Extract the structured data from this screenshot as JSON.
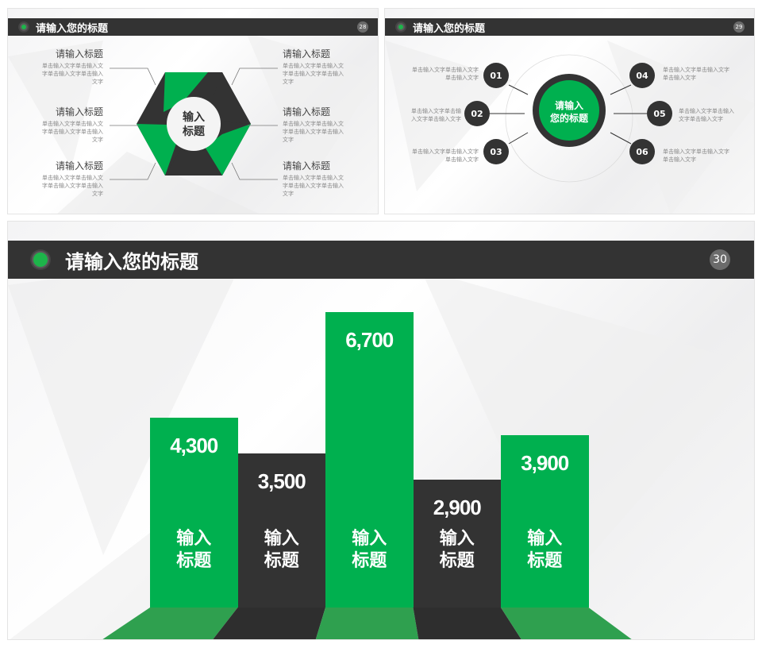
{
  "slide1": {
    "title": "请输入您的标题",
    "page": "28",
    "center_label": "输入\n标题",
    "items_left": [
      {
        "title": "请输入标题",
        "body": "单击输入文字单击输入文字单击输入文字单击输入文字"
      },
      {
        "title": "请输入标题",
        "body": "单击输入文字单击输入文字单击输入文字单击输入文字"
      },
      {
        "title": "请输入标题",
        "body": "单击输入文字单击输入文字单击输入文字单击输入文字"
      }
    ],
    "items_right": [
      {
        "title": "请输入标题",
        "body": "单击输入文字单击输入文字单击输入文字单击输入文字"
      },
      {
        "title": "请输入标题",
        "body": "单击输入文字单击输入文字单击输入文字单击输入文字"
      },
      {
        "title": "请输入标题",
        "body": "单击输入文字单击输入文字单击输入文字单击输入文字"
      }
    ]
  },
  "slide2": {
    "title": "请输入您的标题",
    "page": "29",
    "center_label": "请输入\n您的标题",
    "nodes": [
      {
        "num": "01",
        "text": "单击输入文字单击输入文字单击输入文字"
      },
      {
        "num": "02",
        "text": "单击输入文字单击输入文字单击输入文字"
      },
      {
        "num": "03",
        "text": "单击输入文字单击输入文字单击输入文字"
      },
      {
        "num": "04",
        "text": "单击输入文字单击输入文字单击输入文字"
      },
      {
        "num": "05",
        "text": "单击输入文字单击输入文字单击输入文字"
      },
      {
        "num": "06",
        "text": "单击输入文字单击输入文字单击输入文字"
      }
    ]
  },
  "slide3": {
    "title": "请输入您的标题",
    "page": "30",
    "colors": {
      "green": "#00b04f",
      "dark": "#333333"
    },
    "chart_data": {
      "type": "bar",
      "categories": [
        "输入\n标题",
        "输入\n标题",
        "输入\n标题",
        "输入\n标题",
        "输入\n标题"
      ],
      "values": [
        4300,
        3500,
        6700,
        2900,
        3900
      ],
      "value_labels": [
        "4,300",
        "3,500",
        "6,700",
        "2,900",
        "3,900"
      ],
      "bar_colors": [
        "#00b04f",
        "#333333",
        "#00b04f",
        "#333333",
        "#00b04f"
      ],
      "title": "",
      "xlabel": "",
      "ylabel": "",
      "grid": false
    }
  }
}
